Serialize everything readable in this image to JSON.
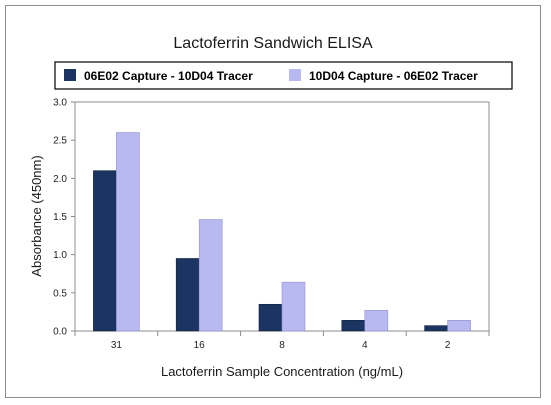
{
  "chart_data": {
    "type": "bar",
    "title": "Lactoferrin Sandwich ELISA",
    "xlabel": "Lactoferrin Sample Concentration (ng/mL)",
    "ylabel": "Absorbance (450nm)",
    "categories": [
      "31",
      "16",
      "8",
      "4",
      "2"
    ],
    "series": [
      {
        "name": "06E02 Capture - 10D04 Tracer",
        "color": "#1c3461",
        "values": [
          2.1,
          0.95,
          0.35,
          0.14,
          0.07
        ]
      },
      {
        "name": "10D04 Capture - 06E02 Tracer",
        "color": "#b9b9f2",
        "values": [
          2.6,
          1.46,
          0.64,
          0.27,
          0.14
        ]
      }
    ],
    "ylim": [
      0,
      3.0
    ],
    "yticks": [
      "0.0",
      "0.5",
      "1.0",
      "1.5",
      "2.0",
      "2.5",
      "3.0"
    ],
    "grid": false,
    "legend_position": "top"
  }
}
